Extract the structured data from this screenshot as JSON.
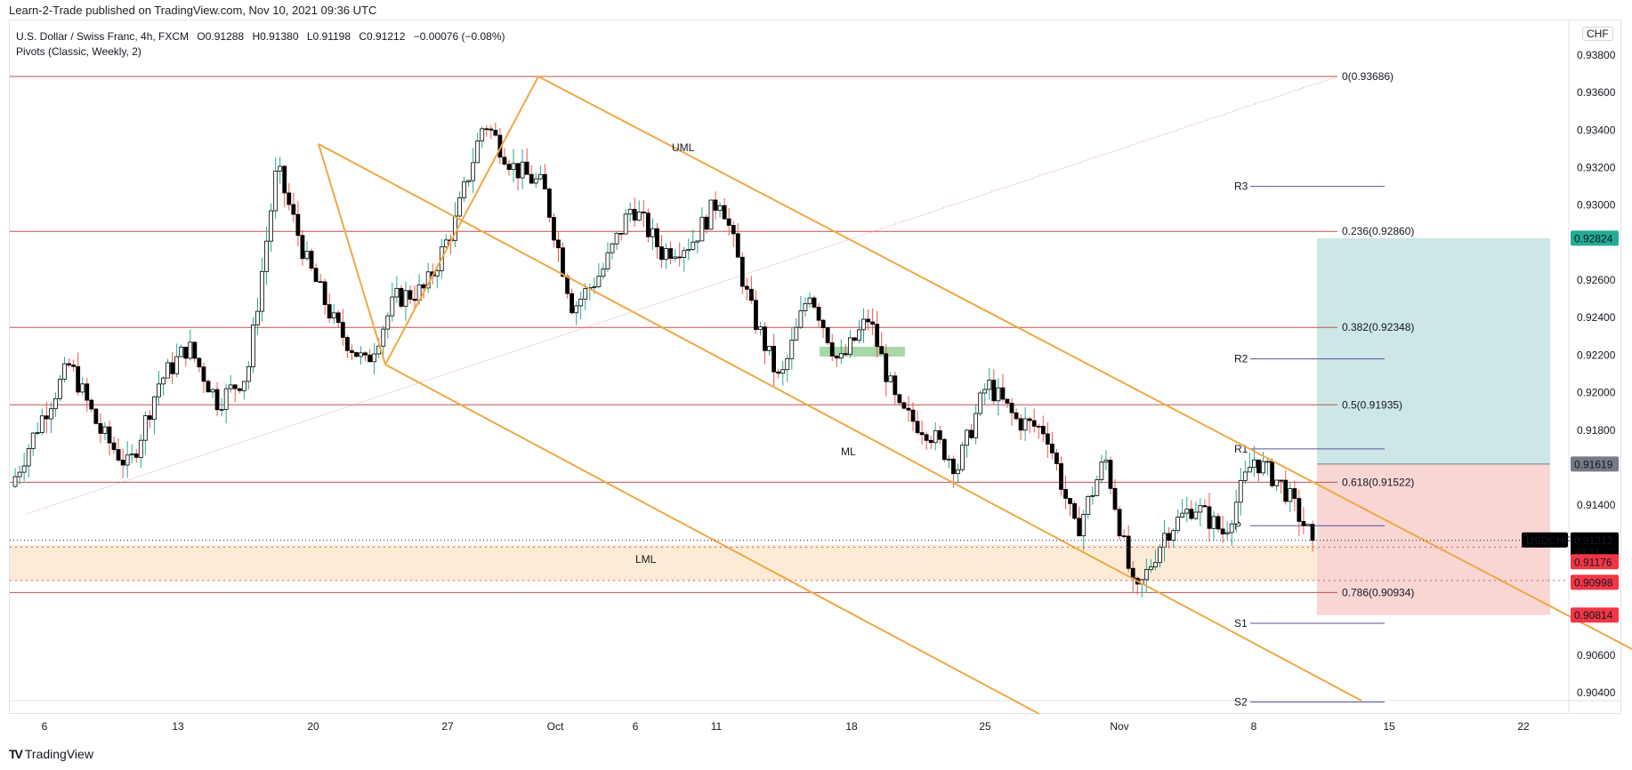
{
  "publish_line": "Learn-2-Trade published on TradingView.com, Nov 10, 2021 09:36 UTC",
  "legend": {
    "symbol": "U.S. Dollar / Swiss Franc, 4h, FXCM",
    "open": "O0.91288",
    "high": "H0.91380",
    "low": "L0.91198",
    "close": "C0.91212",
    "change": "−0.00076 (−0.08%)",
    "indicator": "Pivots (Classic, Weekly, 2)"
  },
  "currency_label": "CHF",
  "footer_logo": "TradingView",
  "colors": {
    "up_candle_body": "#ffffff",
    "down_candle_body": "#000000",
    "wick_up": "#26a69a",
    "wick_down": "#ef5350",
    "fib_line": "#c0504d",
    "pitchfork": "#f0a843",
    "pivot_line": "#5b4ea0",
    "target_zone": "#cde7e6",
    "stop_zone": "#f7d6d4",
    "lml_zone": "#fdebd6",
    "green_box": "#a8d8a8",
    "badge_target": "#22ab94",
    "badge_entry": "#787b86",
    "badge_stop": "#f23645",
    "badge_price": "#000000"
  },
  "chart_data": {
    "type": "candlestick",
    "title": "U.S. Dollar / Swiss Franc, 4h, FXCM",
    "xlabel": "",
    "ylabel": "CHF",
    "ylim": [
      0.903,
      0.939
    ],
    "x_ticks": [
      "6",
      "13",
      "20",
      "27",
      "Oct",
      "6",
      "11",
      "18",
      "25",
      "Nov",
      "8",
      "15",
      "22"
    ],
    "y_ticks": [
      "0.93800",
      "0.93600",
      "0.93400",
      "0.93200",
      "0.93000",
      "0.92600",
      "0.92400",
      "0.92200",
      "0.92000",
      "0.91800",
      "0.91400",
      "0.90600",
      "0.90400"
    ],
    "ohlc_last": {
      "open": 0.91288,
      "high": 0.9138,
      "low": 0.91198,
      "close": 0.91212
    },
    "price_path_waypoints": [
      {
        "date": "Sep 6",
        "price": 0.915
      },
      {
        "date": "Sep 8",
        "price": 0.9185
      },
      {
        "date": "Sep 9",
        "price": 0.9215
      },
      {
        "date": "Sep 10",
        "price": 0.918
      },
      {
        "date": "Sep 13",
        "price": 0.916
      },
      {
        "date": "Sep 14",
        "price": 0.9205
      },
      {
        "date": "Sep 15",
        "price": 0.9225
      },
      {
        "date": "Sep 16",
        "price": 0.9195
      },
      {
        "date": "Sep 17",
        "price": 0.921
      },
      {
        "date": "Sep 20",
        "price": 0.932
      },
      {
        "date": "Sep 21",
        "price": 0.927
      },
      {
        "date": "Sep 22",
        "price": 0.9235
      },
      {
        "date": "Sep 23",
        "price": 0.9215
      },
      {
        "date": "Sep 24",
        "price": 0.925
      },
      {
        "date": "Sep 27",
        "price": 0.9255
      },
      {
        "date": "Sep 28",
        "price": 0.929
      },
      {
        "date": "Sep 29",
        "price": 0.9345
      },
      {
        "date": "Sep 30",
        "price": 0.932
      },
      {
        "date": "Oct 1",
        "price": 0.931
      },
      {
        "date": "Oct 4",
        "price": 0.9245
      },
      {
        "date": "Oct 5",
        "price": 0.9265
      },
      {
        "date": "Oct 6",
        "price": 0.93
      },
      {
        "date": "Oct 8",
        "price": 0.9275
      },
      {
        "date": "Oct 11",
        "price": 0.928
      },
      {
        "date": "Oct 13",
        "price": 0.9305
      },
      {
        "date": "Oct 14",
        "price": 0.9245
      },
      {
        "date": "Oct 15",
        "price": 0.9205
      },
      {
        "date": "Oct 18",
        "price": 0.9255
      },
      {
        "date": "Oct 19",
        "price": 0.9215
      },
      {
        "date": "Oct 20",
        "price": 0.924
      },
      {
        "date": "Oct 21",
        "price": 0.919
      },
      {
        "date": "Oct 22",
        "price": 0.918
      },
      {
        "date": "Oct 25",
        "price": 0.916
      },
      {
        "date": "Oct 26",
        "price": 0.9205
      },
      {
        "date": "Oct 27",
        "price": 0.9185
      },
      {
        "date": "Oct 28",
        "price": 0.918
      },
      {
        "date": "Oct 29",
        "price": 0.9125
      },
      {
        "date": "Nov 1",
        "price": 0.9165
      },
      {
        "date": "Nov 2",
        "price": 0.909
      },
      {
        "date": "Nov 3",
        "price": 0.9125
      },
      {
        "date": "Nov 4",
        "price": 0.914
      },
      {
        "date": "Nov 5",
        "price": 0.9125
      },
      {
        "date": "Nov 8",
        "price": 0.9165
      },
      {
        "date": "Nov 9",
        "price": 0.915
      },
      {
        "date": "Nov 10",
        "price": 0.91212
      }
    ],
    "fibonacci": [
      {
        "level": "0",
        "price": 0.93686,
        "label": "0(0.93686)"
      },
      {
        "level": "0.236",
        "price": 0.9286,
        "label": "0.236(0.92860)"
      },
      {
        "level": "0.382",
        "price": 0.92348,
        "label": "0.382(0.92348)"
      },
      {
        "level": "0.5",
        "price": 0.91935,
        "label": "0.5(0.91935)"
      },
      {
        "level": "0.618",
        "price": 0.91522,
        "label": "0.618(0.91522)"
      },
      {
        "level": "0.786",
        "price": 0.90934,
        "label": "0.786(0.90934)"
      }
    ],
    "pivots": [
      {
        "label": "R3",
        "price": 0.931
      },
      {
        "label": "R2",
        "price": 0.9218
      },
      {
        "label": "R1",
        "price": 0.917
      },
      {
        "label": "P",
        "price": 0.9129
      },
      {
        "label": "S1",
        "price": 0.9077
      },
      {
        "label": "S2",
        "price": 0.9035
      }
    ],
    "annotations": [
      {
        "text": "UML"
      },
      {
        "text": "ML"
      },
      {
        "text": "LML"
      }
    ],
    "position": {
      "target": 0.92824,
      "entry": 0.91619,
      "stop": 0.90814
    },
    "price_badges": [
      {
        "label": "0.92824",
        "kind": "target"
      },
      {
        "label": "0.91619",
        "kind": "entry"
      },
      {
        "label": "0.91212",
        "sub": "23:11",
        "kind": "price",
        "symbol": "USDCHF"
      },
      {
        "label": "0.91176",
        "kind": "stop"
      },
      {
        "label": "0.90998",
        "kind": "stop"
      },
      {
        "label": "0.90814",
        "kind": "stop"
      }
    ]
  }
}
